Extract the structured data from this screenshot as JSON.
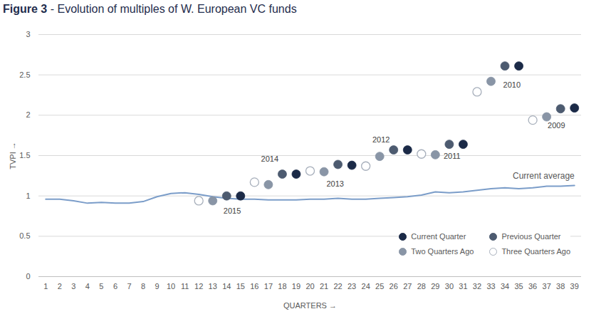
{
  "chart_data": {
    "type": "scatter",
    "title": "Figure 3 - Evolution of multiples of W. European VC funds",
    "x_label": "QUARTERS",
    "y_label": "TVPI",
    "xlim": [
      0.5,
      39.5
    ],
    "xticks": [
      1,
      2,
      3,
      4,
      5,
      6,
      7,
      8,
      9,
      10,
      11,
      12,
      13,
      14,
      15,
      16,
      17,
      18,
      19,
      20,
      21,
      22,
      23,
      24,
      25,
      26,
      27,
      28,
      29,
      30,
      31,
      32,
      33,
      34,
      35,
      36,
      37,
      38,
      39
    ],
    "ylim": [
      0,
      3
    ],
    "yticks": [
      0,
      0.5,
      1,
      1.5,
      2,
      2.5,
      3
    ],
    "grid": true,
    "legend": "bottom-right",
    "series": [
      {
        "name": "Current average",
        "type": "line",
        "color": "#7b9dc9",
        "x": [
          1,
          2,
          3,
          4,
          5,
          6,
          7,
          8,
          9,
          10,
          11,
          12,
          13,
          14,
          15,
          16,
          17,
          18,
          19,
          20,
          21,
          22,
          23,
          24,
          25,
          26,
          27,
          28,
          29,
          30,
          31,
          32,
          33,
          34,
          35,
          36,
          37,
          38,
          39
        ],
        "values": [
          0.96,
          0.96,
          0.94,
          0.91,
          0.92,
          0.91,
          0.91,
          0.93,
          0.99,
          1.03,
          1.04,
          1.02,
          0.99,
          0.97,
          0.96,
          0.96,
          0.95,
          0.95,
          0.95,
          0.96,
          0.96,
          0.97,
          0.96,
          0.96,
          0.97,
          0.98,
          0.99,
          1.01,
          1.05,
          1.04,
          1.05,
          1.07,
          1.09,
          1.1,
          1.09,
          1.1,
          1.12,
          1.12,
          1.13
        ]
      },
      {
        "name": "Current Quarter",
        "type": "scatter",
        "marker": "circle",
        "color": "#1b2a47",
        "x": [
          15,
          19,
          23,
          27,
          31,
          35,
          39
        ],
        "values": [
          1.0,
          1.27,
          1.38,
          1.57,
          1.64,
          2.61,
          2.09
        ]
      },
      {
        "name": "Previous Quarter",
        "type": "scatter",
        "marker": "circle",
        "color": "#4d5b70",
        "x": [
          14,
          18,
          22,
          26,
          30,
          34,
          38
        ],
        "values": [
          1.0,
          1.27,
          1.39,
          1.57,
          1.64,
          2.61,
          2.08
        ]
      },
      {
        "name": "Two Quarters Ago",
        "type": "scatter",
        "marker": "circle",
        "color": "#8995a6",
        "x": [
          13,
          17,
          21,
          25,
          29,
          33,
          37
        ],
        "values": [
          0.94,
          1.14,
          1.3,
          1.49,
          1.51,
          2.42,
          1.98
        ]
      },
      {
        "name": "Three Quarters Ago",
        "type": "scatter",
        "marker": "open circle",
        "color": "#a7afbb",
        "x": [
          12,
          16,
          20,
          24,
          28,
          32,
          36
        ],
        "values": [
          0.94,
          1.17,
          1.31,
          1.37,
          1.52,
          2.29,
          1.94
        ]
      }
    ],
    "annotations": [
      {
        "text": "2015",
        "x": 14.4,
        "y": 0.81
      },
      {
        "text": "2014",
        "x": 17.1,
        "y": 1.46
      },
      {
        "text": "2013",
        "x": 21.8,
        "y": 1.15
      },
      {
        "text": "2012",
        "x": 25.1,
        "y": 1.69
      },
      {
        "text": "2011",
        "x": 30.2,
        "y": 1.49
      },
      {
        "text": "2010",
        "x": 34.5,
        "y": 2.37
      },
      {
        "text": "2009",
        "x": 37.7,
        "y": 1.87
      }
    ]
  }
}
